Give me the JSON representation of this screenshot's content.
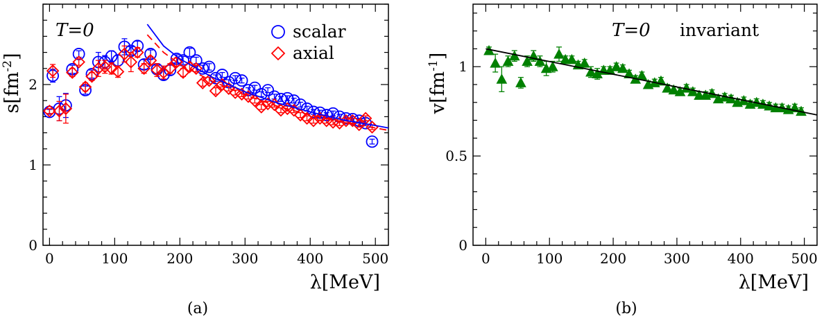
{
  "chart_data": [
    {
      "panel": "(a)",
      "type": "scatter",
      "annotation": "T=0",
      "xlabel": "λ[MeV]",
      "ylabel": "s[fm^-2]",
      "ylabel_main": "s[fm",
      "ylabel_sup": "-2",
      "ylabel_close": "]",
      "xlim": [
        -10,
        520
      ],
      "ylim": [
        0,
        3.0
      ],
      "xticks": [
        0,
        100,
        200,
        300,
        400,
        500
      ],
      "yticks": [
        0,
        1,
        2
      ],
      "grid": false,
      "legend_position": "top-right",
      "series": [
        {
          "name": "scalar",
          "marker": "circle",
          "color": "#0000ff",
          "x": [
            0,
            5,
            15,
            25,
            35,
            45,
            55,
            65,
            75,
            85,
            95,
            105,
            115,
            125,
            135,
            145,
            155,
            165,
            175,
            185,
            195,
            205,
            215,
            225,
            235,
            245,
            255,
            265,
            275,
            285,
            295,
            305,
            315,
            325,
            335,
            345,
            355,
            365,
            375,
            385,
            395,
            405,
            415,
            425,
            435,
            445,
            455,
            465,
            475,
            485,
            495
          ],
          "y": [
            1.66,
            2.11,
            1.7,
            1.74,
            2.19,
            2.38,
            1.93,
            2.13,
            2.28,
            2.28,
            2.35,
            2.3,
            2.47,
            2.42,
            2.48,
            2.25,
            2.38,
            2.19,
            2.12,
            2.18,
            2.32,
            2.3,
            2.4,
            2.3,
            2.2,
            2.22,
            2.08,
            2.12,
            2.03,
            2.08,
            2.05,
            1.93,
            1.96,
            1.88,
            1.93,
            1.85,
            1.82,
            1.83,
            1.8,
            1.75,
            1.7,
            1.66,
            1.65,
            1.62,
            1.64,
            1.6,
            1.58,
            1.57,
            1.55,
            1.52,
            1.29
          ],
          "yerr": [
            0.03,
            0.08,
            0.15,
            0.15,
            0.05,
            0.04,
            0.05,
            0.05,
            0.12,
            0.08,
            0.07,
            0.07,
            0.1,
            0.05,
            0.06,
            0.06,
            0.05,
            0.05,
            0.06,
            0.06,
            0.05,
            0.05,
            0.05,
            0.04,
            0.04,
            0.04,
            0.04,
            0.03,
            0.03,
            0.03,
            0.03,
            0.03,
            0.03,
            0.03,
            0.03,
            0.03,
            0.03,
            0.03,
            0.03,
            0.03,
            0.03,
            0.03,
            0.03,
            0.03,
            0.03,
            0.03,
            0.03,
            0.03,
            0.03,
            0.03,
            0.03
          ]
        },
        {
          "name": "axial",
          "marker": "diamond",
          "color": "#ff0000",
          "x": [
            0,
            5,
            15,
            25,
            35,
            45,
            55,
            65,
            75,
            85,
            95,
            105,
            115,
            125,
            135,
            145,
            155,
            165,
            175,
            185,
            195,
            205,
            215,
            225,
            235,
            245,
            255,
            265,
            275,
            285,
            295,
            305,
            315,
            325,
            335,
            345,
            355,
            365,
            375,
            385,
            395,
            405,
            415,
            425,
            435,
            445,
            455,
            465,
            475,
            485,
            495
          ],
          "y": [
            1.67,
            2.17,
            1.67,
            1.7,
            2.15,
            2.28,
            1.97,
            2.1,
            2.2,
            2.22,
            2.2,
            2.16,
            2.38,
            2.28,
            2.4,
            2.2,
            2.3,
            2.18,
            2.15,
            2.2,
            2.28,
            2.15,
            2.22,
            2.2,
            2.02,
            2.05,
            1.92,
            2.0,
            1.95,
            1.9,
            1.88,
            1.85,
            1.8,
            1.72,
            1.76,
            1.75,
            1.68,
            1.7,
            1.68,
            1.62,
            1.58,
            1.55,
            1.58,
            1.55,
            1.53,
            1.52,
            1.55,
            1.55,
            1.5,
            1.58,
            1.47
          ],
          "yerr": [
            0.03,
            0.08,
            0.12,
            0.18,
            0.05,
            0.04,
            0.05,
            0.05,
            0.1,
            0.08,
            0.07,
            0.07,
            0.1,
            0.12,
            0.06,
            0.06,
            0.05,
            0.08,
            0.08,
            0.06,
            0.05,
            0.05,
            0.05,
            0.04,
            0.04,
            0.04,
            0.04,
            0.03,
            0.03,
            0.03,
            0.03,
            0.03,
            0.03,
            0.03,
            0.03,
            0.03,
            0.03,
            0.03,
            0.03,
            0.03,
            0.03,
            0.03,
            0.03,
            0.03,
            0.03,
            0.03,
            0.03,
            0.03,
            0.03,
            0.03,
            0.03
          ]
        },
        {
          "name": "scalar fit",
          "type": "line",
          "style": "solid",
          "color": "#0000ff",
          "x": [
            150,
            175,
            200,
            250,
            300,
            350,
            400,
            450,
            500,
            520
          ],
          "y": [
            2.75,
            2.48,
            2.32,
            2.09,
            1.91,
            1.77,
            1.66,
            1.56,
            1.49,
            1.46
          ]
        },
        {
          "name": "axial fit",
          "type": "line",
          "style": "dashed",
          "color": "#ff0000",
          "x": [
            150,
            175,
            200,
            250,
            300,
            350,
            400,
            450,
            500,
            520
          ],
          "y": [
            2.62,
            2.4,
            2.25,
            2.04,
            1.87,
            1.73,
            1.62,
            1.53,
            1.46,
            1.43
          ]
        }
      ],
      "legend": [
        "scalar",
        "axial"
      ]
    },
    {
      "panel": "(b)",
      "type": "scatter",
      "annotation": "T=0",
      "annotation_label": "invariant",
      "xlabel": "λ[MeV]",
      "ylabel": "v[fm^-1]",
      "ylabel_main": "v[fm",
      "ylabel_sup": "-1",
      "ylabel_close": "]",
      "xlim": [
        -20,
        520
      ],
      "ylim": [
        0,
        1.35
      ],
      "xticks": [
        0,
        100,
        200,
        300,
        400,
        500
      ],
      "yticks": [
        0,
        0.5,
        1
      ],
      "grid": false,
      "series": [
        {
          "name": "invariant",
          "marker": "triangle-up",
          "color": "#008000",
          "x": [
            5,
            15,
            25,
            35,
            45,
            55,
            65,
            75,
            85,
            95,
            105,
            115,
            125,
            135,
            145,
            155,
            165,
            175,
            185,
            195,
            205,
            215,
            225,
            235,
            245,
            255,
            265,
            275,
            285,
            295,
            305,
            315,
            325,
            335,
            345,
            355,
            365,
            375,
            385,
            395,
            405,
            415,
            425,
            435,
            445,
            455,
            465,
            475,
            485,
            495
          ],
          "y": [
            1.09,
            1.02,
            0.93,
            1.03,
            1.06,
            0.91,
            1.03,
            1.06,
            1.03,
            0.99,
            1.0,
            1.07,
            1.04,
            1.04,
            1.01,
            1.02,
            0.97,
            0.96,
            0.98,
            0.98,
            1.0,
            0.99,
            0.96,
            0.93,
            0.95,
            0.9,
            0.91,
            0.92,
            0.88,
            0.87,
            0.86,
            0.88,
            0.86,
            0.84,
            0.84,
            0.85,
            0.82,
            0.83,
            0.82,
            0.8,
            0.81,
            0.79,
            0.8,
            0.79,
            0.78,
            0.77,
            0.77,
            0.76,
            0.77,
            0.75
          ],
          "yerr": [
            0.02,
            0.05,
            0.07,
            0.03,
            0.03,
            0.03,
            0.03,
            0.03,
            0.03,
            0.04,
            0.03,
            0.04,
            0.02,
            0.02,
            0.02,
            0.02,
            0.03,
            0.03,
            0.02,
            0.02,
            0.02,
            0.02,
            0.02,
            0.02,
            0.02,
            0.02,
            0.02,
            0.02,
            0.02,
            0.02,
            0.02,
            0.02,
            0.02,
            0.02,
            0.02,
            0.02,
            0.02,
            0.02,
            0.02,
            0.02,
            0.02,
            0.02,
            0.02,
            0.02,
            0.02,
            0.02,
            0.02,
            0.02,
            0.02,
            0.02
          ]
        },
        {
          "name": "linear fit",
          "type": "line",
          "style": "solid",
          "color": "#000000",
          "x": [
            0,
            520
          ],
          "y": [
            1.1,
            0.73
          ]
        }
      ]
    }
  ]
}
